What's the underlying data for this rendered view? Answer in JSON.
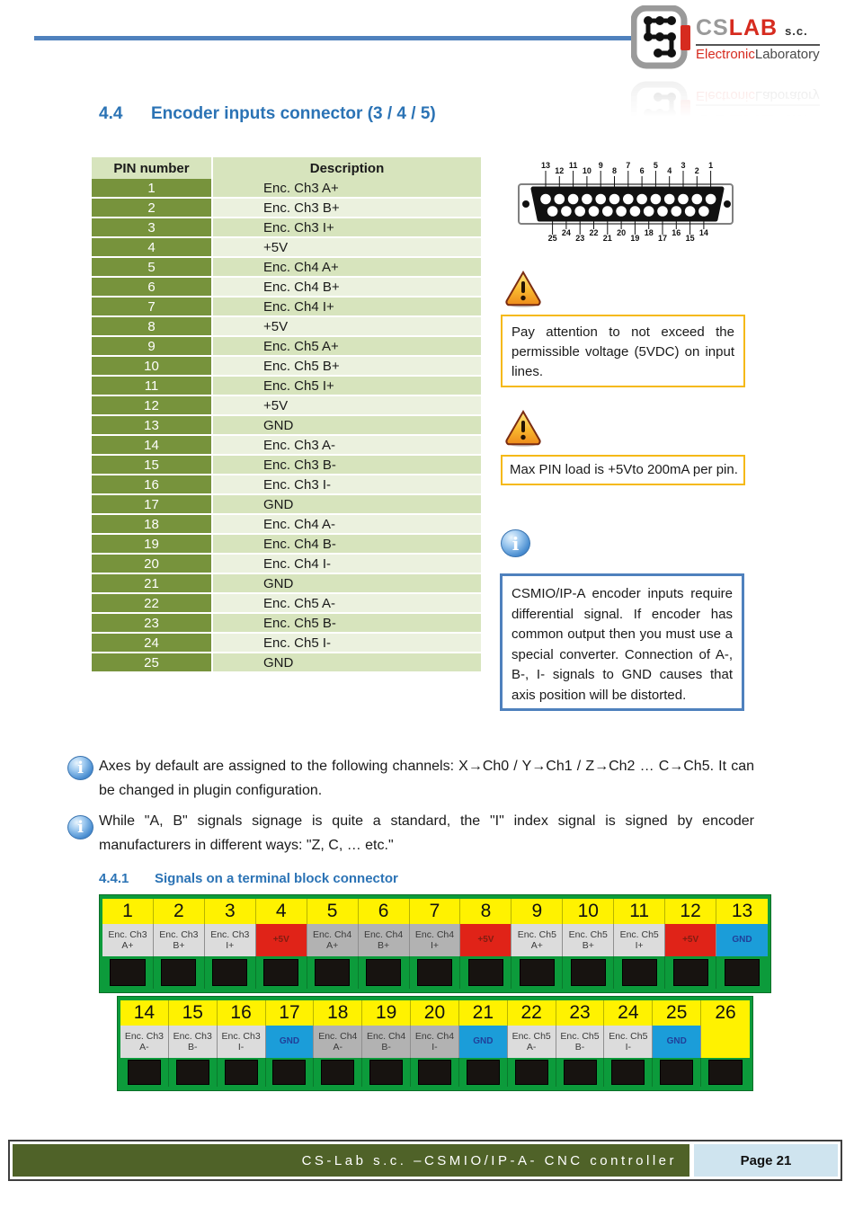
{
  "logo": {
    "cs": "CS",
    "lab": "LAB",
    "sc": "s.c.",
    "line2_red": "Electronic",
    "line2_dark": "Laboratory"
  },
  "section": {
    "number": "4.4",
    "title": "Encoder inputs connector (3 / 4 / 5)"
  },
  "subsection": {
    "number": "4.4.1",
    "title": "Signals on a terminal block connector"
  },
  "pin_table": {
    "headers": [
      "PIN number",
      "Description"
    ],
    "rows": [
      [
        "1",
        "Enc. Ch3 A+"
      ],
      [
        "2",
        "Enc. Ch3 B+"
      ],
      [
        "3",
        "Enc. Ch3 I+"
      ],
      [
        "4",
        "+5V"
      ],
      [
        "5",
        "Enc. Ch4 A+"
      ],
      [
        "6",
        "Enc. Ch4 B+"
      ],
      [
        "7",
        "Enc. Ch4 I+"
      ],
      [
        "8",
        "+5V"
      ],
      [
        "9",
        "Enc. Ch5 A+"
      ],
      [
        "10",
        "Enc. Ch5 B+"
      ],
      [
        "11",
        "Enc. Ch5 I+"
      ],
      [
        "12",
        "+5V"
      ],
      [
        "13",
        "GND"
      ],
      [
        "14",
        "Enc. Ch3 A-"
      ],
      [
        "15",
        "Enc. Ch3 B-"
      ],
      [
        "16",
        "Enc. Ch3 I-"
      ],
      [
        "17",
        "GND"
      ],
      [
        "18",
        "Enc. Ch4 A-"
      ],
      [
        "19",
        "Enc. Ch4 B-"
      ],
      [
        "20",
        "Enc. Ch4 I-"
      ],
      [
        "21",
        "GND"
      ],
      [
        "22",
        "Enc. Ch5 A-"
      ],
      [
        "23",
        "Enc. Ch5 B-"
      ],
      [
        "24",
        "Enc. Ch5 I-"
      ],
      [
        "25",
        "GND"
      ]
    ]
  },
  "connector": {
    "top_labels": [
      "13",
      "12",
      "11",
      "10",
      "9",
      "8",
      "7",
      "6",
      "5",
      "4",
      "3",
      "2",
      "1"
    ],
    "bottom_labels": [
      "25",
      "24",
      "23",
      "22",
      "21",
      "20",
      "19",
      "18",
      "17",
      "16",
      "15",
      "14"
    ]
  },
  "warnings": [
    {
      "text": "Pay attention to not exceed the permissible voltage (5VDC) on input lines."
    },
    {
      "text": "Max PIN load is +5Vto 200mA per pin."
    }
  ],
  "info_box": {
    "text": "CSMIO/IP-A encoder inputs require differential signal. If encoder has common output then you must use a special converter. Connection of A-, B-, I- signals to GND causes that axis position will be distorted."
  },
  "notes": [
    {
      "text": "Axes by default are assigned to the following channels: X→Ch0 / Y→Ch1 / Z→Ch2 … C→Ch5. It can be changed in plugin configuration."
    },
    {
      "text": "While \"A, B\" signals signage is quite a standard, the \"I\" index signal is signed by encoder manufacturers in different ways: \"Z, C, … etc.\""
    }
  ],
  "terminal_strips": [
    {
      "pins": [
        {
          "n": "1",
          "line1": "Enc. Ch3",
          "line2": "A+",
          "type": "gray-light"
        },
        {
          "n": "2",
          "line1": "Enc. Ch3",
          "line2": "B+",
          "type": "gray-light"
        },
        {
          "n": "3",
          "line1": "Enc. Ch3",
          "line2": "I+",
          "type": "gray-light"
        },
        {
          "n": "4",
          "line1": "+5V",
          "line2": "",
          "type": "red"
        },
        {
          "n": "5",
          "line1": "Enc. Ch4",
          "line2": "A+",
          "type": "gray-dark"
        },
        {
          "n": "6",
          "line1": "Enc. Ch4",
          "line2": "B+",
          "type": "gray-dark"
        },
        {
          "n": "7",
          "line1": "Enc. Ch4",
          "line2": "I+",
          "type": "gray-dark"
        },
        {
          "n": "8",
          "line1": "+5V",
          "line2": "",
          "type": "red"
        },
        {
          "n": "9",
          "line1": "Enc. Ch5",
          "line2": "A+",
          "type": "gray-light"
        },
        {
          "n": "10",
          "line1": "Enc. Ch5",
          "line2": "B+",
          "type": "gray-light"
        },
        {
          "n": "11",
          "line1": "Enc. Ch5",
          "line2": "I+",
          "type": "gray-light"
        },
        {
          "n": "12",
          "line1": "+5V",
          "line2": "",
          "type": "red"
        },
        {
          "n": "13",
          "line1": "GND",
          "line2": "",
          "type": "blue"
        }
      ]
    },
    {
      "pins": [
        {
          "n": "14",
          "line1": "Enc. Ch3",
          "line2": "A-",
          "type": "gray-light"
        },
        {
          "n": "15",
          "line1": "Enc. Ch3",
          "line2": "B-",
          "type": "gray-light"
        },
        {
          "n": "16",
          "line1": "Enc. Ch3",
          "line2": "I-",
          "type": "gray-light"
        },
        {
          "n": "17",
          "line1": "GND",
          "line2": "",
          "type": "blue"
        },
        {
          "n": "18",
          "line1": "Enc. Ch4",
          "line2": "A-",
          "type": "gray-dark"
        },
        {
          "n": "19",
          "line1": "Enc. Ch4",
          "line2": "B-",
          "type": "gray-dark"
        },
        {
          "n": "20",
          "line1": "Enc. Ch4",
          "line2": "I-",
          "type": "gray-dark"
        },
        {
          "n": "21",
          "line1": "GND",
          "line2": "",
          "type": "blue"
        },
        {
          "n": "22",
          "line1": "Enc. Ch5",
          "line2": "A-",
          "type": "gray-light"
        },
        {
          "n": "23",
          "line1": "Enc. Ch5",
          "line2": "B-",
          "type": "gray-light"
        },
        {
          "n": "24",
          "line1": "Enc. Ch5",
          "line2": "I-",
          "type": "gray-light"
        },
        {
          "n": "25",
          "line1": "GND",
          "line2": "",
          "type": "blue"
        },
        {
          "n": "26",
          "line1": "",
          "line2": "",
          "type": "empty"
        }
      ]
    }
  ],
  "footer": {
    "left_text": "CS-Lab s.c. –CSMIO/IP-A- CNC controller",
    "page_label": "Page 21"
  },
  "colors": {
    "accent_heading_blue": "#2b73b5",
    "rule_blue": "#4f81bd",
    "table_olive": "#77933c",
    "table_green": "#d7e4bd",
    "table_green_light": "#ebf1de",
    "warning_border": "#f5b915",
    "info_border": "#4f81bd",
    "footer_green": "#4f6228",
    "footer_page_bg": "#cfe4ef",
    "strip_green": "#0c9b3b",
    "strip_yellow": "#fff200",
    "strip_red": "#e02318",
    "strip_blue": "#1b9dd9"
  }
}
